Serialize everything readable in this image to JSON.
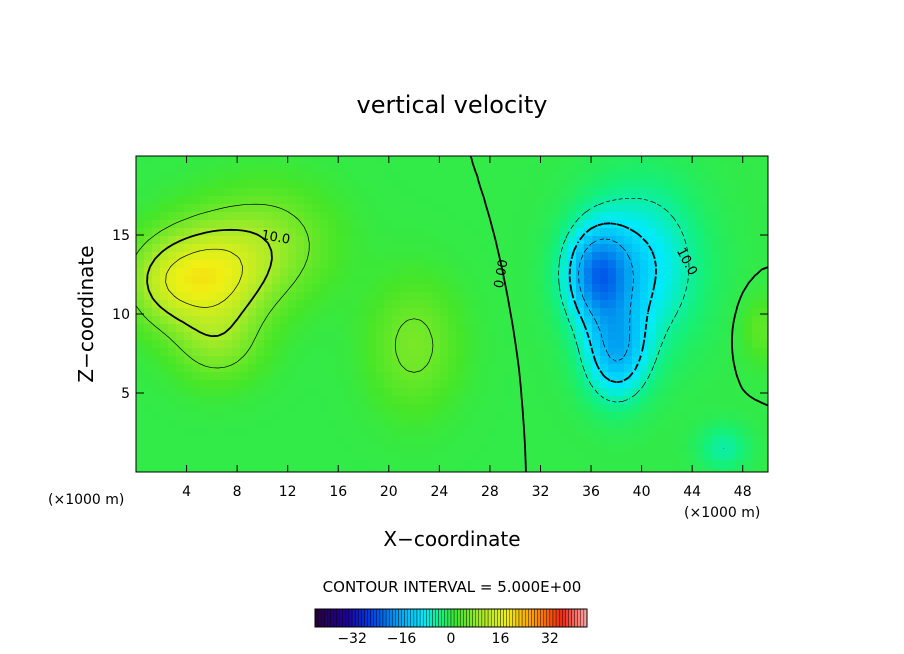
{
  "chart_data": {
    "type": "heatmap",
    "title": "vertical velocity",
    "xlabel": "X−coordinate",
    "ylabel": "Z−coordinate",
    "x_unit_left": "(×1000 m)",
    "x_unit_right": "(×1000 m)",
    "xlim": [
      0,
      50
    ],
    "ylim": [
      0,
      20
    ],
    "x_ticks": [
      4,
      8,
      12,
      16,
      20,
      24,
      28,
      32,
      36,
      40,
      44,
      48
    ],
    "y_ticks": [
      5,
      10,
      15
    ],
    "contour_interval_text": "CONTOUR INTERVAL = 5.000E+00",
    "contour_labels": [
      {
        "text": "10.0",
        "x": 11,
        "y": 14.6,
        "rotate": 10
      },
      {
        "text": "0.00",
        "x": 29.2,
        "y": 12.5,
        "rotate": -80
      },
      {
        "text": "10.0",
        "x": 43.3,
        "y": 13.2,
        "rotate": 62
      }
    ],
    "value_range": [
      -40,
      40
    ],
    "blobs": [
      {
        "x": 5.5,
        "y": 12.3,
        "sx": 4.5,
        "sy": 3.2,
        "amp": 16
      },
      {
        "x": 10.5,
        "y": 14.5,
        "sx": 5,
        "sy": 3.5,
        "amp": 7
      },
      {
        "x": 6.5,
        "y": 8,
        "sx": 3.5,
        "sy": 2.5,
        "amp": 6
      },
      {
        "x": 22,
        "y": 8,
        "sx": 3.5,
        "sy": 4,
        "amp": 6
      },
      {
        "x": 2,
        "y": 12,
        "sx": 3,
        "sy": 2.5,
        "amp": 5
      },
      {
        "x": 36.5,
        "y": 12.5,
        "sx": 2.5,
        "sy": 3,
        "amp": -17
      },
      {
        "x": 38,
        "y": 7.5,
        "sx": 2.5,
        "sy": 3,
        "amp": -13
      },
      {
        "x": 40,
        "y": 13,
        "sx": 4.5,
        "sy": 5,
        "amp": -10
      },
      {
        "x": 46.5,
        "y": 1.5,
        "sx": 2,
        "sy": 1.5,
        "amp": -5
      },
      {
        "x": 49.5,
        "y": 9,
        "sx": 1.5,
        "sy": 2,
        "amp": 4
      }
    ],
    "colorbar": {
      "ticks": [
        -32,
        -16,
        0,
        16,
        32
      ],
      "labels": [
        "−32",
        "−16",
        "0",
        "16",
        "32"
      ],
      "min": -44,
      "max": 44
    },
    "grid": false
  }
}
